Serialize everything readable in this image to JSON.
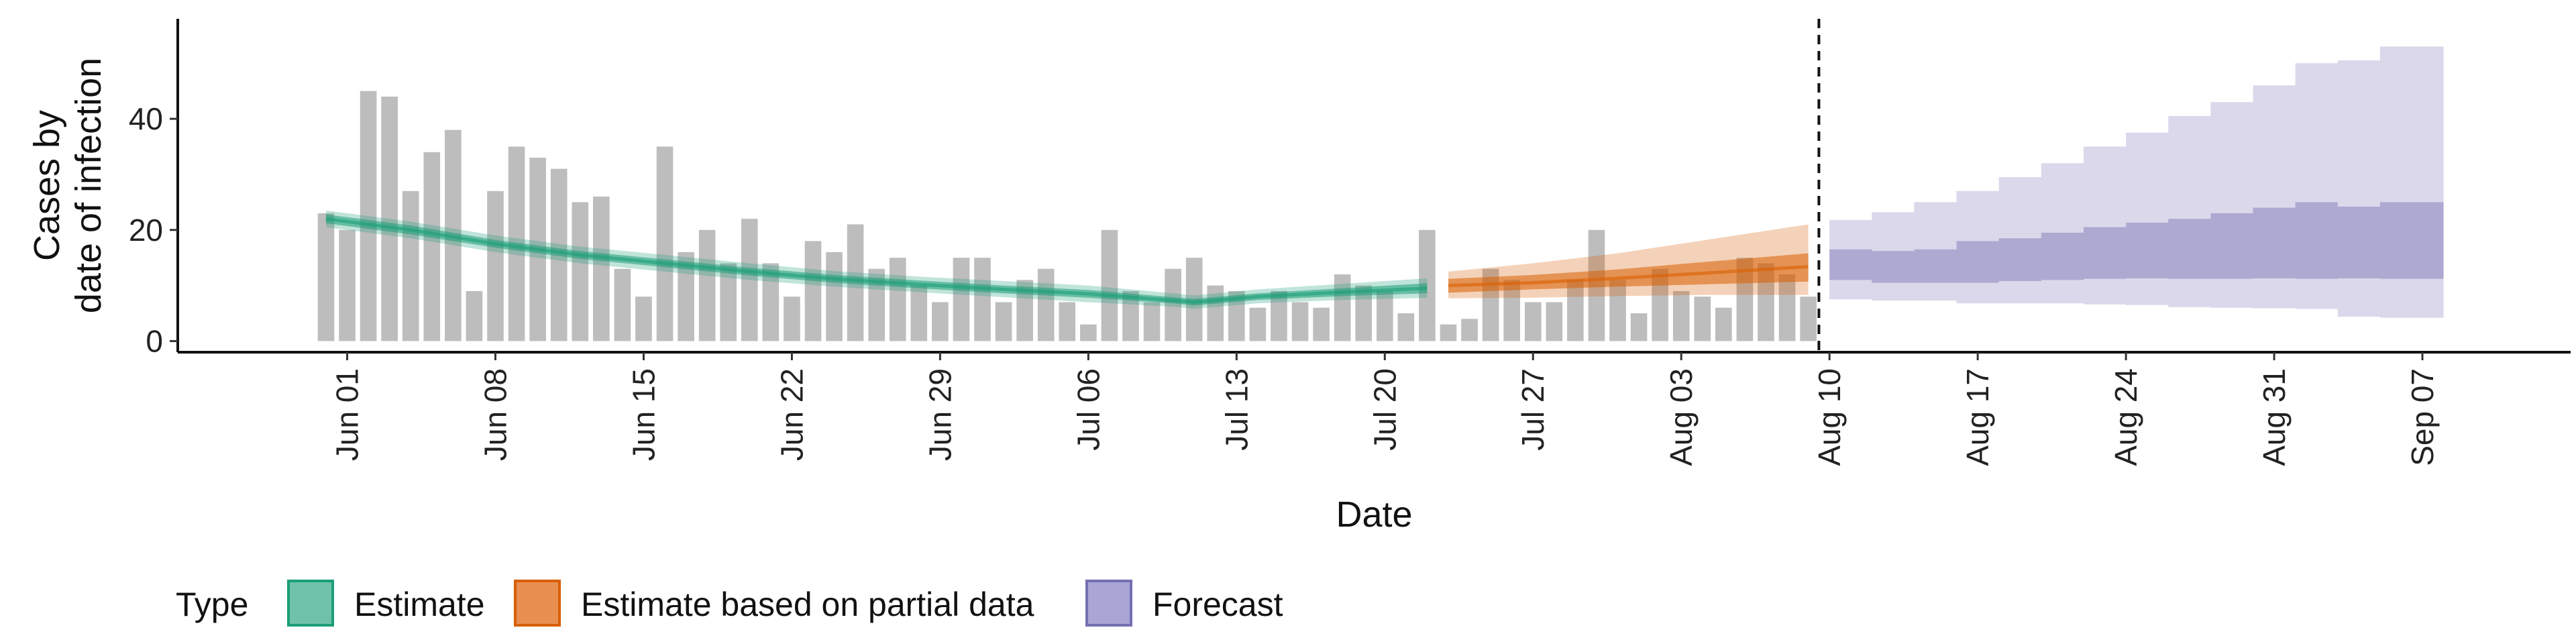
{
  "chart_data": {
    "type": "bar",
    "ylabel": [
      "Cases by",
      "date of infection"
    ],
    "xlabel": "Date",
    "x_ticks": [
      {
        "date": "2020-06-01",
        "label": "Jun 01"
      },
      {
        "date": "2020-06-08",
        "label": "Jun 08"
      },
      {
        "date": "2020-06-15",
        "label": "Jun 15"
      },
      {
        "date": "2020-06-22",
        "label": "Jun 22"
      },
      {
        "date": "2020-06-29",
        "label": "Jun 29"
      },
      {
        "date": "2020-07-06",
        "label": "Jul 06"
      },
      {
        "date": "2020-07-13",
        "label": "Jul 13"
      },
      {
        "date": "2020-07-20",
        "label": "Jul 20"
      },
      {
        "date": "2020-07-27",
        "label": "Jul 27"
      },
      {
        "date": "2020-08-03",
        "label": "Aug 03"
      },
      {
        "date": "2020-08-10",
        "label": "Aug 10"
      },
      {
        "date": "2020-08-17",
        "label": "Aug 17"
      },
      {
        "date": "2020-08-24",
        "label": "Aug 24"
      },
      {
        "date": "2020-08-31",
        "label": "Aug 31"
      },
      {
        "date": "2020-09-07",
        "label": "Sep 07"
      }
    ],
    "y_ticks": [
      0,
      20,
      40
    ],
    "ylim": [
      -2,
      58
    ],
    "xlim": [
      "2020-05-24",
      "2020-09-14"
    ],
    "grid": false,
    "forecast_start": "2020-08-09",
    "reported_cases": {
      "start_date": "2020-05-31",
      "values": [
        23,
        20,
        45,
        44,
        27,
        34,
        38,
        9,
        27,
        35,
        33,
        31,
        25,
        26,
        13,
        8,
        35,
        16,
        20,
        14,
        22,
        14,
        8,
        18,
        16,
        21,
        13,
        15,
        10,
        7,
        15,
        15,
        7,
        11,
        13,
        7,
        3,
        20,
        9,
        7,
        13,
        15,
        10,
        9,
        6,
        9,
        7,
        6,
        12,
        10,
        9,
        5,
        20,
        3,
        4,
        13,
        11,
        7,
        7,
        11,
        20,
        11,
        5,
        13,
        9,
        8,
        6,
        15,
        14,
        12,
        8
      ]
    },
    "series": [
      {
        "name": "Estimate",
        "color": "#1b9e77",
        "dates": [
          "2020-05-31",
          "2020-06-04",
          "2020-06-08",
          "2020-06-12",
          "2020-06-16",
          "2020-06-20",
          "2020-06-24",
          "2020-06-28",
          "2020-07-02",
          "2020-07-06",
          "2020-07-10",
          "2020-07-11",
          "2020-07-14",
          "2020-07-18",
          "2020-07-22"
        ],
        "median": [
          22,
          20,
          17.5,
          15.5,
          14,
          12.5,
          11.2,
          10.2,
          9.3,
          8.5,
          7.3,
          7,
          8,
          8.8,
          9.5
        ],
        "lower_20": [
          21.2,
          19.2,
          16.8,
          14.8,
          13.3,
          11.8,
          10.5,
          9.5,
          8.6,
          7.8,
          6.8,
          6.4,
          7.4,
          8.1,
          8.6
        ],
        "upper_20": [
          22.8,
          20.8,
          18.2,
          16.2,
          14.7,
          13.2,
          11.9,
          10.9,
          10,
          9.2,
          7.9,
          7.6,
          8.6,
          9.5,
          10.4
        ],
        "lower_90": [
          20.5,
          18.5,
          16,
          14,
          12.5,
          11,
          9.8,
          8.8,
          7.9,
          7,
          6.2,
          5.8,
          6.8,
          7.4,
          7.8
        ],
        "upper_90": [
          23.5,
          21.5,
          19,
          17,
          15.5,
          14,
          12.6,
          11.6,
          10.8,
          10,
          8.6,
          8.2,
          9.3,
          10.3,
          11.3
        ]
      },
      {
        "name": "Estimate based on partial data",
        "color": "#d95f02",
        "dates": [
          "2020-07-23",
          "2020-07-27",
          "2020-07-31",
          "2020-08-04",
          "2020-08-09"
        ],
        "median": [
          10,
          10.5,
          11.3,
          12.2,
          13.4
        ],
        "lower_20": [
          8.7,
          9.3,
          9.8,
          10.2,
          10.7
        ],
        "upper_20": [
          11.2,
          11.9,
          12.9,
          14.2,
          15.8
        ],
        "lower_90": [
          7.7,
          7.8,
          8.1,
          8.3,
          8.3
        ],
        "upper_90": [
          12.5,
          14,
          15.8,
          18.1,
          21
        ]
      },
      {
        "name": "Forecast",
        "color": "#7570b3",
        "dates": [
          "2020-08-10",
          "2020-08-12",
          "2020-08-14",
          "2020-08-16",
          "2020-08-18",
          "2020-08-20",
          "2020-08-22",
          "2020-08-24",
          "2020-08-26",
          "2020-08-28",
          "2020-08-30",
          "2020-09-01",
          "2020-09-03",
          "2020-09-05",
          "2020-09-08"
        ],
        "lower_20": [
          11,
          10.5,
          10.5,
          10.5,
          10.8,
          11,
          11.2,
          11.3,
          11.2,
          11.2,
          11.3,
          11.2,
          11.3,
          11.2,
          11.6
        ],
        "upper_20": [
          16.5,
          16.2,
          16.5,
          18,
          18.5,
          19.5,
          20.5,
          21.3,
          22,
          23,
          24,
          25,
          24.2,
          25,
          27
        ],
        "lower_90": [
          7.5,
          7.3,
          7.3,
          6.8,
          6.8,
          6.8,
          6.6,
          6.5,
          6.1,
          6,
          5.9,
          5.8,
          4.4,
          4.2,
          4.2
        ],
        "upper_90": [
          21.8,
          23.2,
          25,
          27,
          29.5,
          32,
          35,
          37.5,
          40.5,
          43,
          46,
          50,
          50.5,
          53,
          56
        ]
      }
    ],
    "legend": {
      "title": "Type",
      "position": "bottom",
      "items": [
        {
          "label": "Estimate",
          "fill": "#6fc2a8",
          "stroke": "#1b9e77"
        },
        {
          "label": "Estimate based on partial data",
          "fill": "#e98f52",
          "stroke": "#d95f02"
        },
        {
          "label": "Forecast",
          "fill": "#a9a6d4",
          "stroke": "#7570b3"
        }
      ]
    }
  }
}
